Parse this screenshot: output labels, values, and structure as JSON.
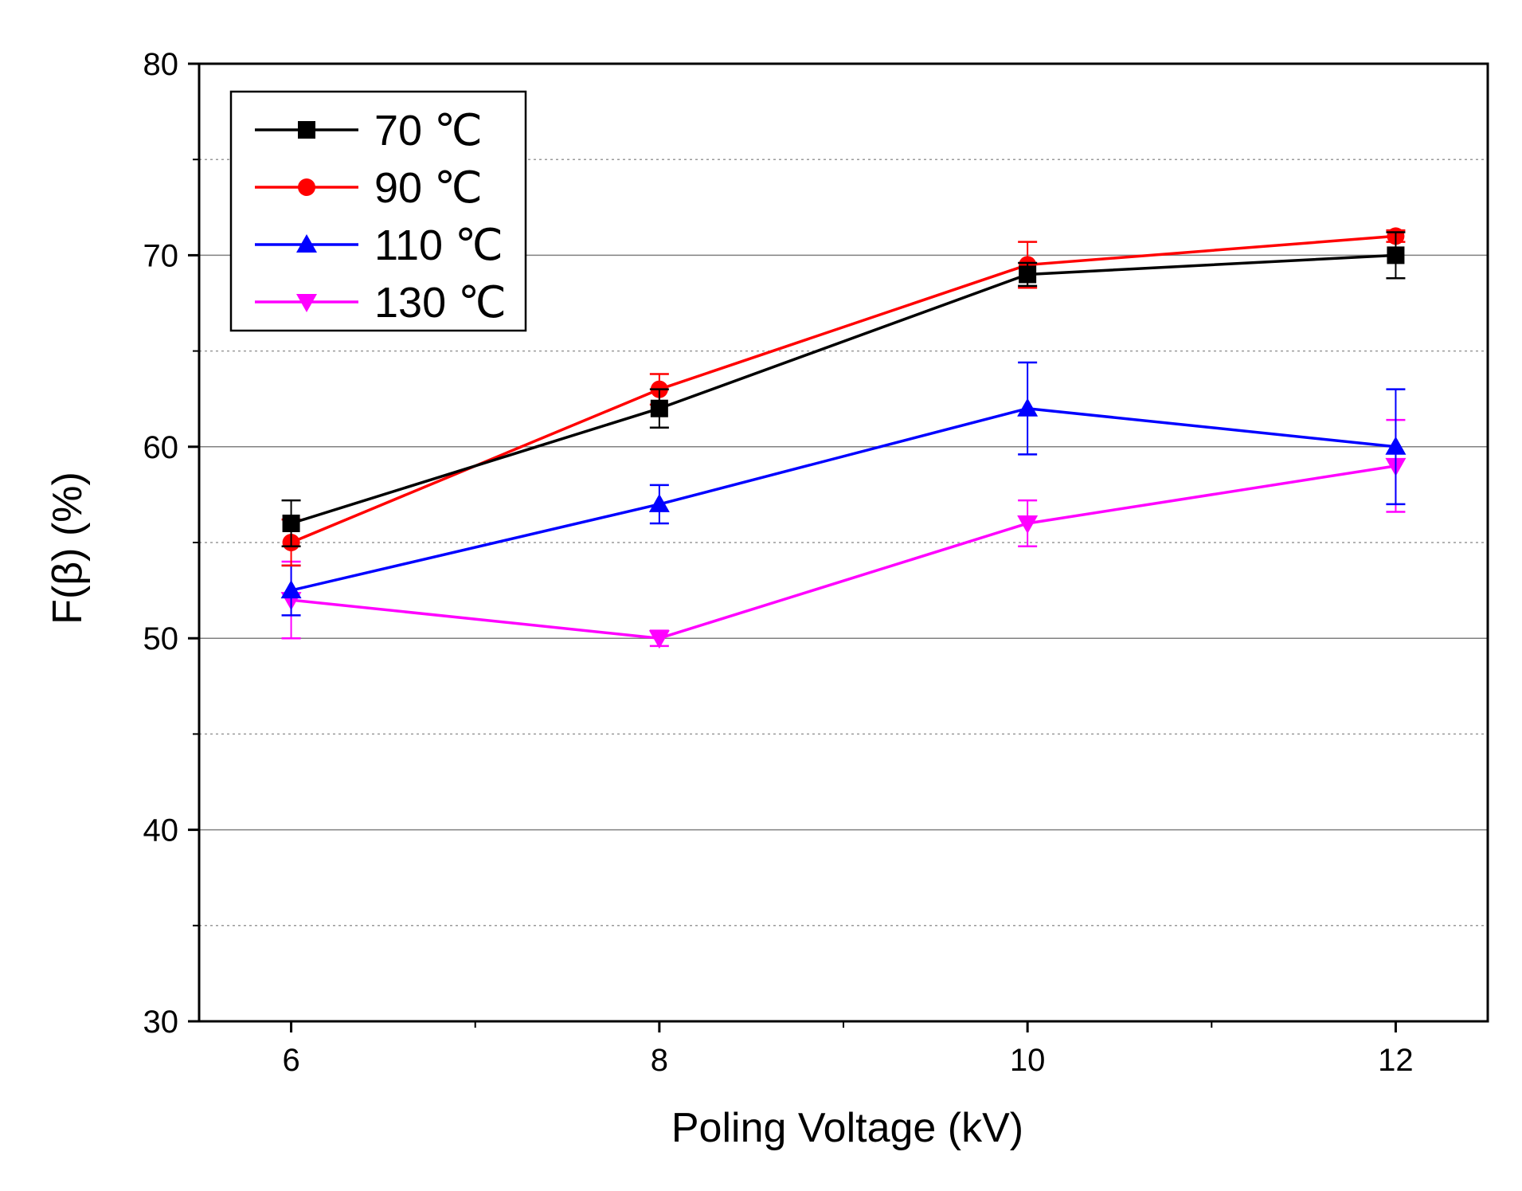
{
  "chart_data": {
    "type": "line",
    "xlabel": "Poling Voltage (kV)",
    "ylabel": "F(β) (%)",
    "xlim": [
      5.5,
      12.5
    ],
    "ylim": [
      30,
      80
    ],
    "x_ticks": [
      "6",
      "8",
      "10",
      "12"
    ],
    "y_ticks": [
      "30",
      "40",
      "50",
      "60",
      "70",
      "80"
    ],
    "minor_grid_y": [
      35,
      45,
      55,
      65,
      75
    ],
    "grid": true,
    "legend_position": "top-left",
    "x": [
      6,
      8,
      10,
      12
    ],
    "series": [
      {
        "name": "70 ℃",
        "color": "#000000",
        "marker": "square",
        "values": [
          56,
          62,
          69,
          70
        ],
        "errors": [
          1.2,
          1.0,
          0.6,
          1.2
        ]
      },
      {
        "name": "90 ℃",
        "color": "#ff0000",
        "marker": "circle",
        "values": [
          55,
          63,
          69.5,
          71
        ],
        "errors": [
          1.2,
          0.8,
          1.2,
          0.3
        ]
      },
      {
        "name": "110 ℃",
        "color": "#0000ff",
        "marker": "triangle-up",
        "values": [
          52.5,
          57,
          62,
          60
        ],
        "errors": [
          1.3,
          1.0,
          2.4,
          3.0
        ]
      },
      {
        "name": "130 ℃",
        "color": "#ff00ff",
        "marker": "triangle-down",
        "values": [
          52,
          50,
          56,
          59
        ],
        "errors": [
          2.0,
          0.4,
          1.2,
          2.4
        ]
      }
    ]
  }
}
